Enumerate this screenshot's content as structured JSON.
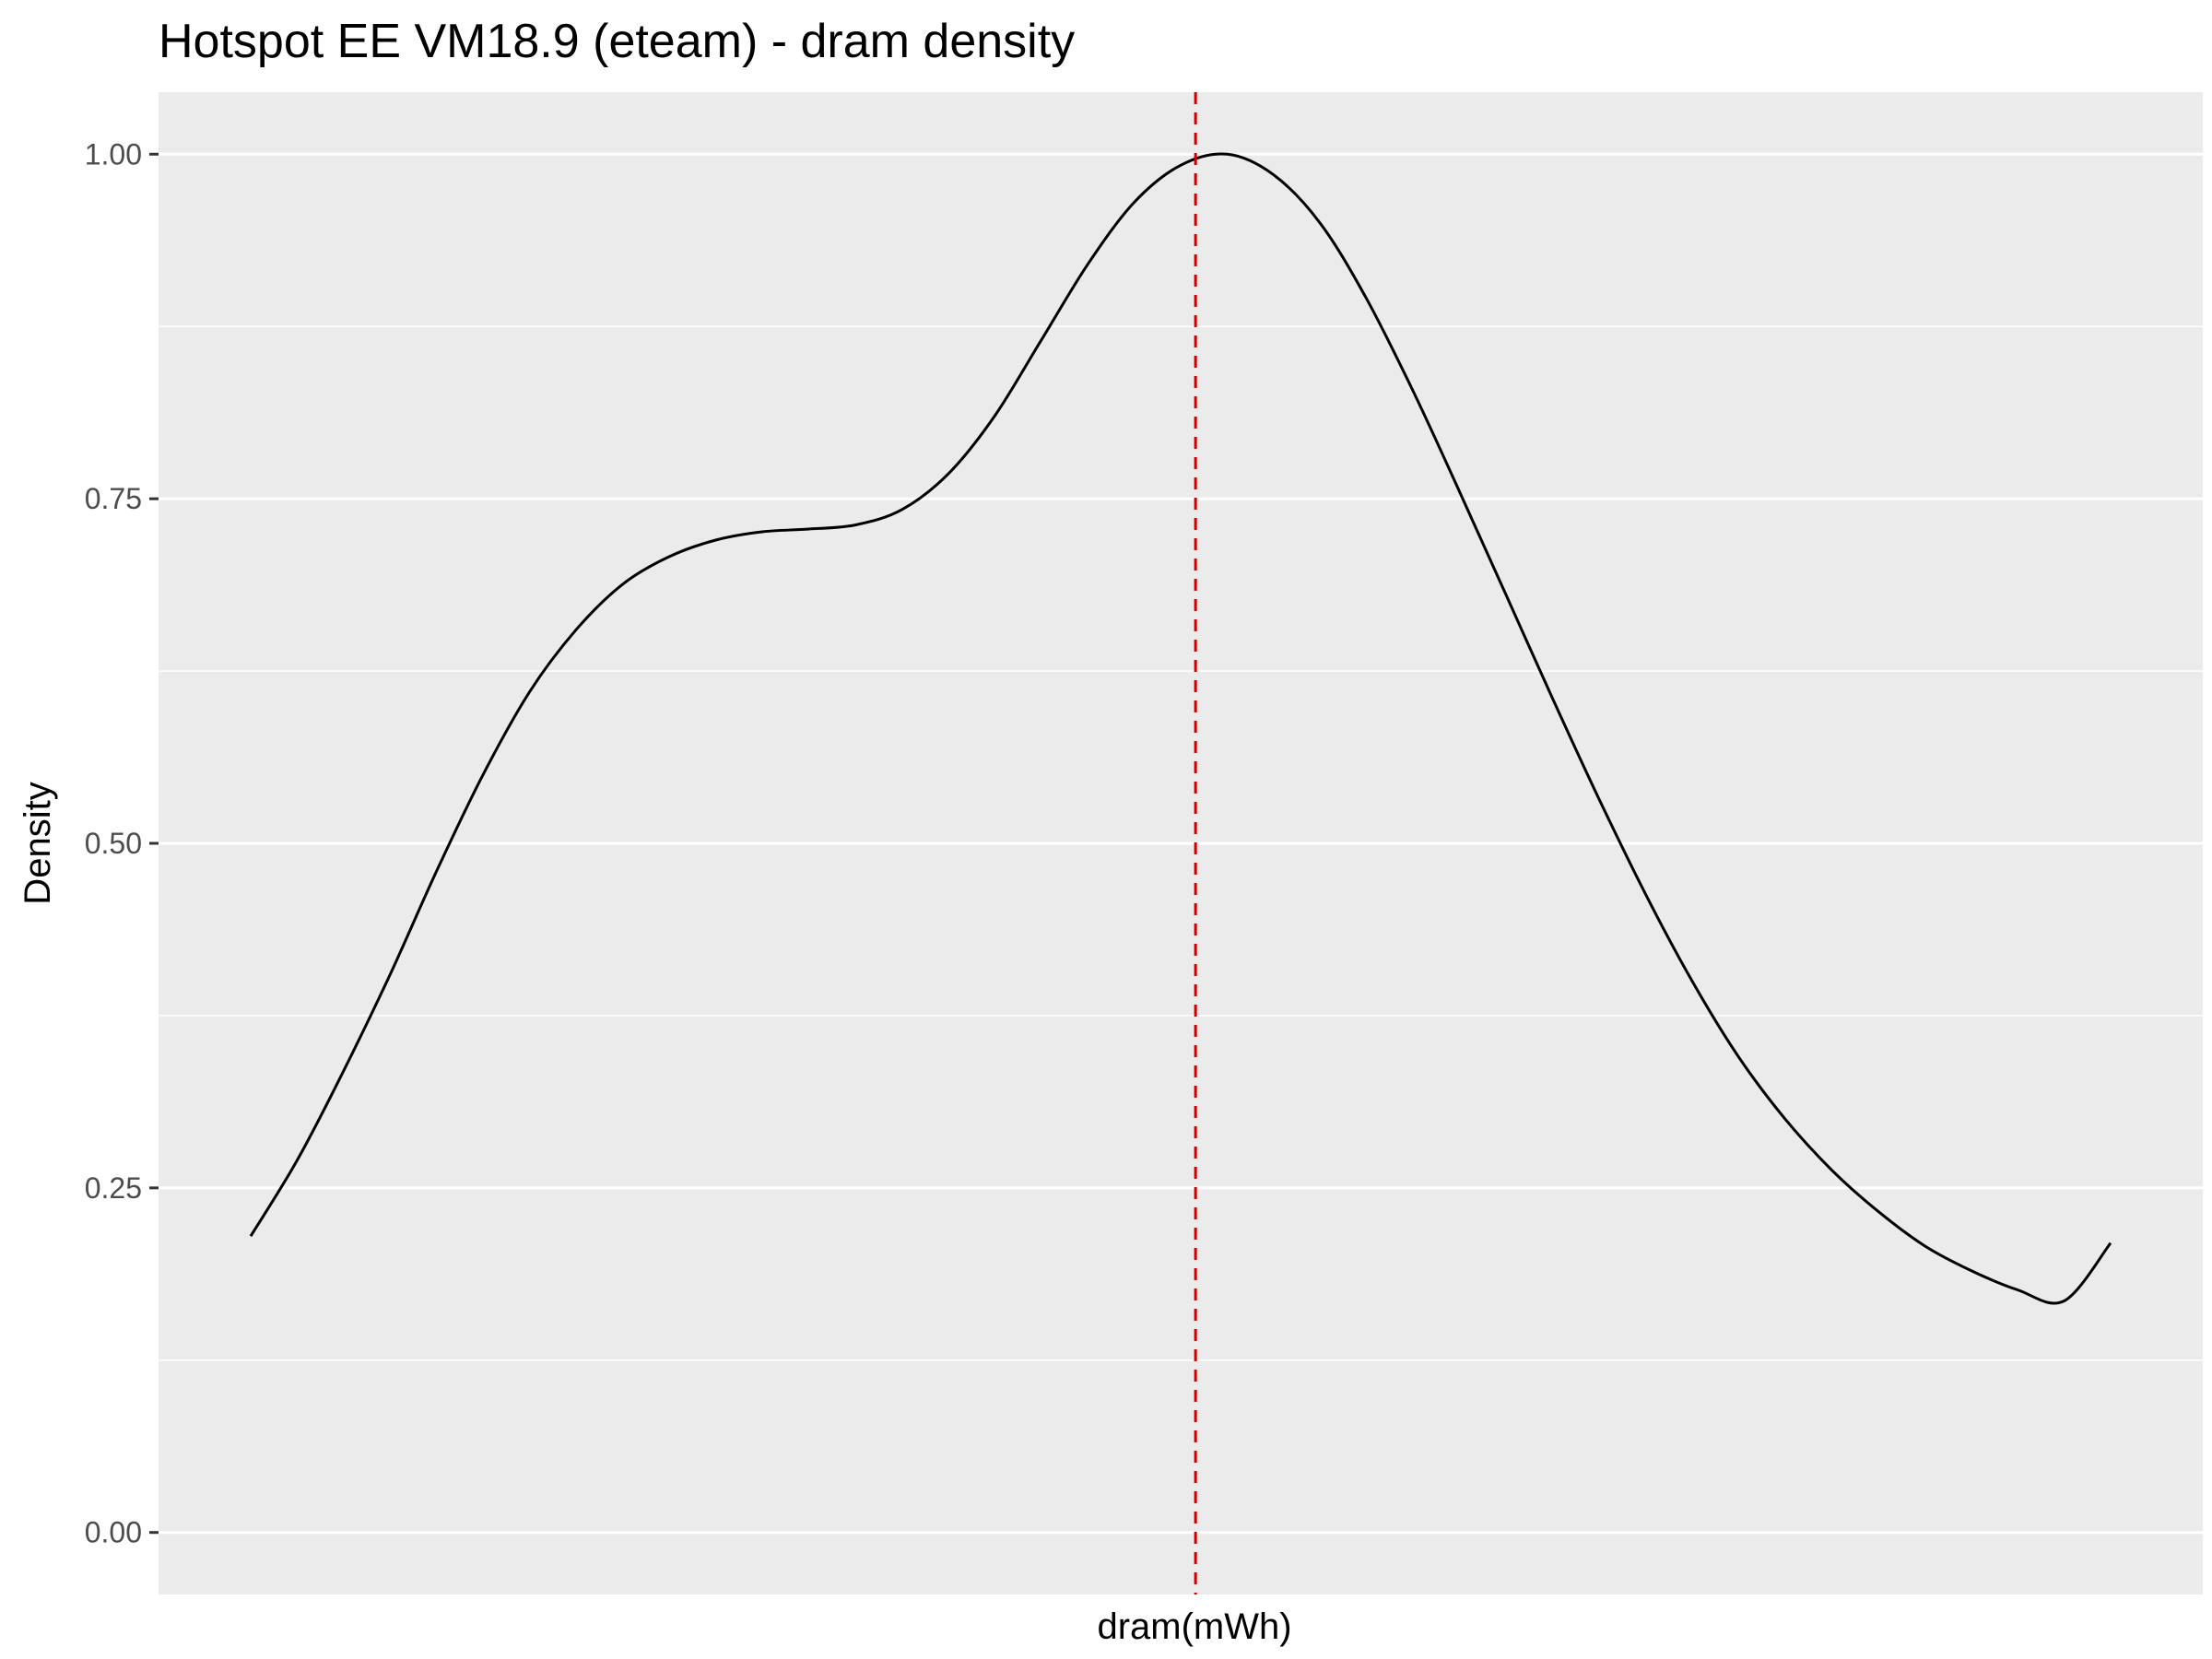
{
  "chart_data": {
    "type": "line",
    "title": "Hotspot EE VM18.9 (eteam) - dram density",
    "xlabel": "dram(mWh)",
    "ylabel": "Density",
    "xlim": [
      0,
      1
    ],
    "ylim": [
      -0.045,
      1.045
    ],
    "y_ticks": [
      0.0,
      0.25,
      0.5,
      0.75,
      1.0
    ],
    "y_tick_labels": [
      "0.00",
      "0.25",
      "0.50",
      "0.75",
      "1.00"
    ],
    "x_ticks": [],
    "grid": true,
    "legend": "none",
    "colors": {
      "panel_background": "#ebebeb",
      "grid_major": "#ffffff",
      "grid_minor": "#ffffff",
      "density_line": "#000000",
      "reference_line": "#cc0000"
    },
    "series": [
      {
        "x": [
          0.0,
          0.025,
          0.05,
          0.075,
          0.1,
          0.125,
          0.15,
          0.175,
          0.2,
          0.225,
          0.25,
          0.275,
          0.3,
          0.325,
          0.35,
          0.375,
          0.4,
          0.425,
          0.45,
          0.475,
          0.5,
          0.525,
          0.55,
          0.575,
          0.6,
          0.625,
          0.65,
          0.675,
          0.7,
          0.725,
          0.75,
          0.775,
          0.8,
          0.825,
          0.85,
          0.875,
          0.9,
          0.925,
          0.95,
          0.975,
          1.0
        ],
        "values": [
          0.215,
          0.27,
          0.335,
          0.405,
          0.48,
          0.55,
          0.61,
          0.655,
          0.688,
          0.708,
          0.72,
          0.726,
          0.728,
          0.731,
          0.742,
          0.768,
          0.81,
          0.865,
          0.92,
          0.965,
          0.992,
          1.0,
          0.985,
          0.95,
          0.895,
          0.828,
          0.755,
          0.68,
          0.605,
          0.532,
          0.463,
          0.4,
          0.345,
          0.3,
          0.263,
          0.233,
          0.208,
          0.19,
          0.176,
          0.168,
          0.21
        ]
      }
    ],
    "reference_line": {
      "x": 0.508,
      "style": "dashed"
    }
  }
}
